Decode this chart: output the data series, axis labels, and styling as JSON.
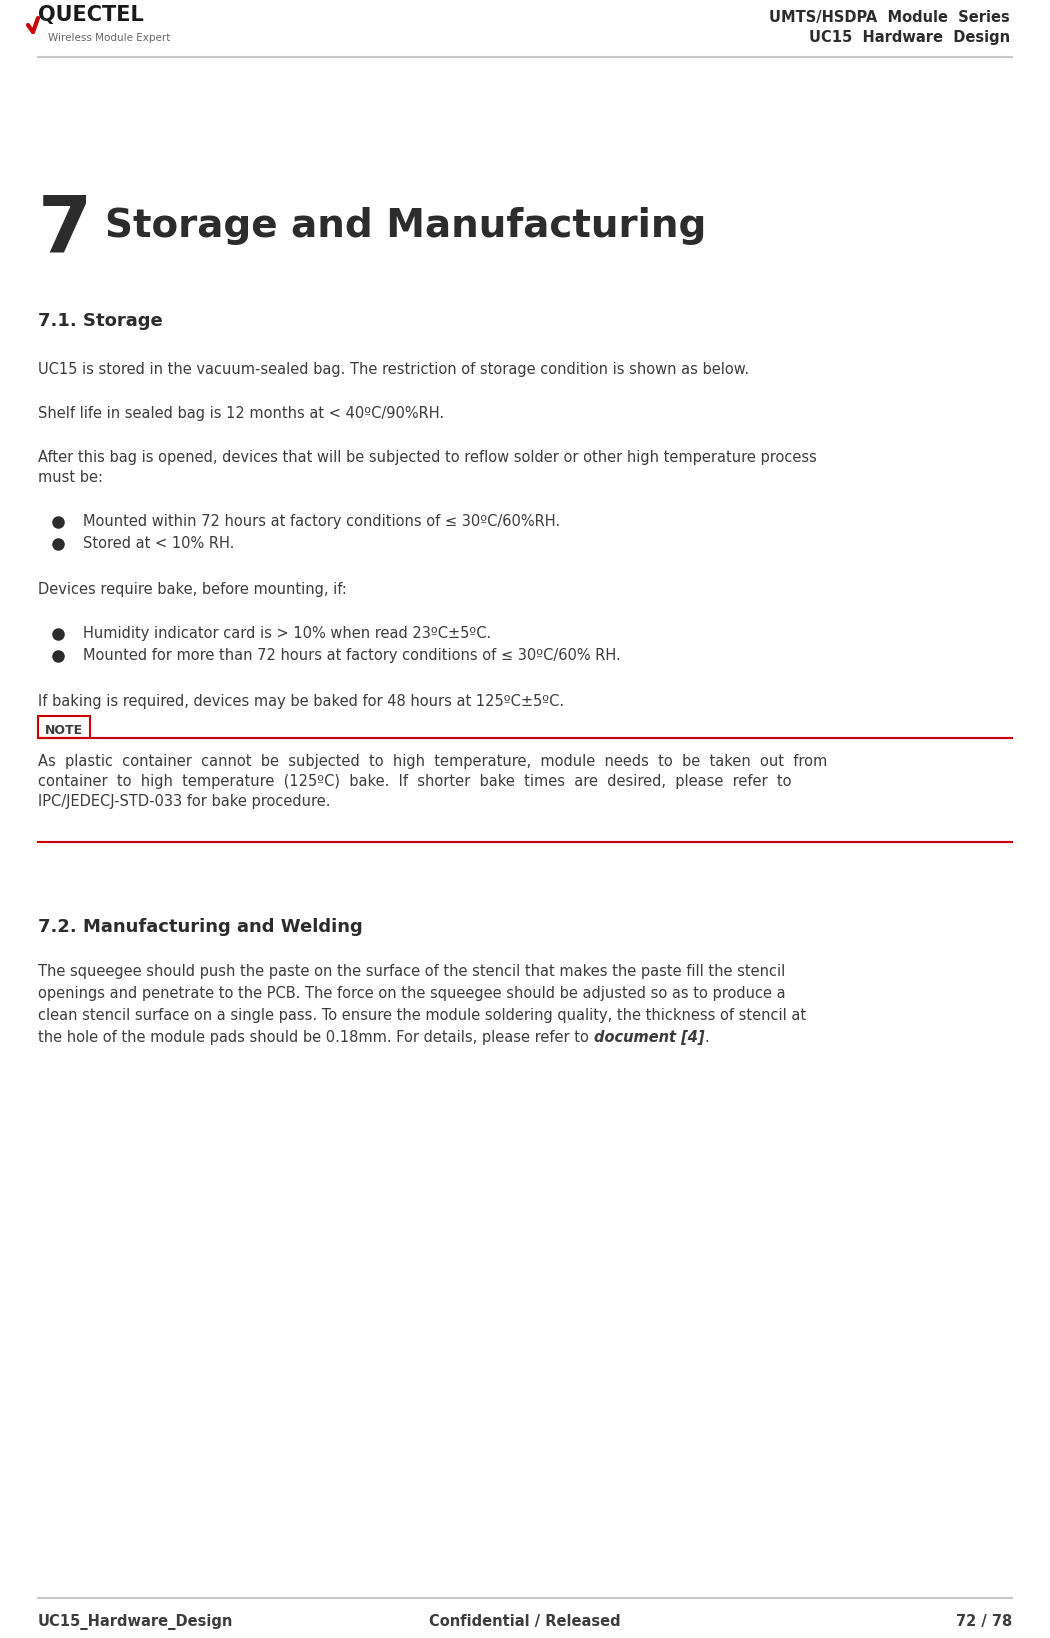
{
  "header_title1": "UMTS/HSDPA  Module  Series",
  "header_title2": "UC15  Hardware  Design",
  "chapter_number": "7",
  "chapter_title": "Storage and Manufacturing",
  "section1_title": "7.1. Storage",
  "section1_intro": "UC15 is stored in the vacuum-sealed bag. The restriction of storage condition is shown as below.",
  "shelf_life": "Shelf life in sealed bag is 12 months at < 40ºC/90%RH.",
  "after_open_line1": "After this bag is opened, devices that will be subjected to reflow solder or other high temperature process",
  "after_open_line2": "must be:",
  "bullet1a": "Mounted within 72 hours at factory conditions of ≤ 30ºC/60%RH.",
  "bullet1b": "Stored at < 10% RH.",
  "devices_require": "Devices require bake, before mounting, if:",
  "bullet2a": "Humidity indicator card is > 10% when read 23ºC±5ºC.",
  "bullet2b": "Mounted for more than 72 hours at factory conditions of ≤ 30ºC/60% RH.",
  "baking_text": "If baking is required, devices may be baked for 48 hours at 125ºC±5ºC.",
  "note_label": "NOTE",
  "note_text_line1": "As  plastic  container  cannot  be  subjected  to  high  temperature,  module  needs  to  be  taken  out  from",
  "note_text_line2": "container  to  high  temperature  (125ºC)  bake.  If  shorter  bake  times  are  desired,  please  refer  to",
  "note_text_line3": "IPC/JEDECJ-STD-033 for bake procedure.",
  "section2_title": "7.2. Manufacturing and Welding",
  "section2_text_line1": "The squeegee should push the paste on the surface of the stencil that makes the paste fill the stencil",
  "section2_text_line2": "openings and penetrate to the PCB. The force on the squeegee should be adjusted so as to produce a",
  "section2_text_line3": "clean stencil surface on a single pass. To ensure the module soldering quality, the thickness of stencil at",
  "section2_text_line4_pre": "the hole of the module pads should be 0.18mm. For details, please refer to ",
  "section2_text_line4_bold": "document [4]",
  "section2_text_line4_post": ".",
  "footer_left": "UC15_Hardware_Design",
  "footer_center": "Confidential / Released",
  "footer_right": "72 / 78",
  "text_color": "#3c3c3c",
  "header_line_color": "#c8c8c8",
  "footer_line_color": "#c8c8c8",
  "note_border_color": "#cc0000",
  "note_bg_color": "#ffffff",
  "bg_color": "#ffffff",
  "chapter_num_color": "#2c2c2c",
  "section_title_color": "#2c2c2c",
  "bullet_color": "#2c2c2c",
  "logo_text_color": "#1a1a1a",
  "logo_sub_color": "#666666"
}
